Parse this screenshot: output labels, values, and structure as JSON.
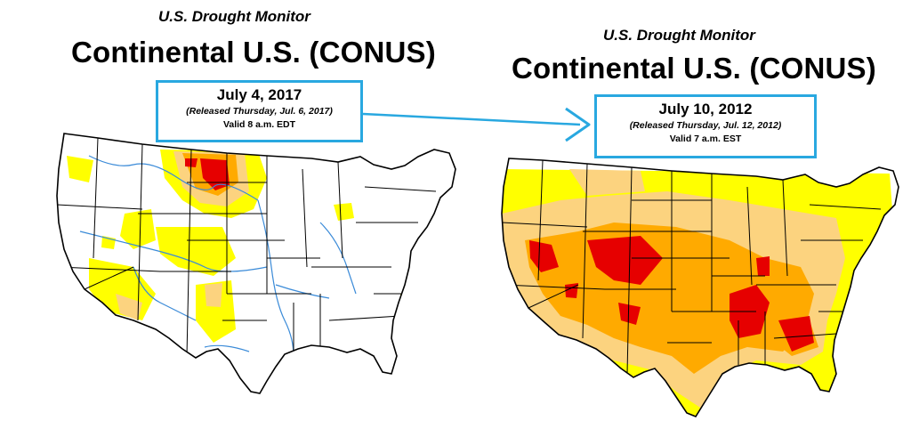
{
  "maps": [
    {
      "subtitle": "U.S. Drought Monitor",
      "title": "Continental U.S. (CONUS)",
      "date": "July 4, 2017",
      "released": "(Released Thursday, Jul. 6, 2017)",
      "valid": "Valid 8 a.m. EDT"
    },
    {
      "subtitle": "U.S. Drought Monitor",
      "title": "Continental U.S. (CONUS)",
      "date": "July 10, 2012",
      "released": "(Released Thursday, Jul. 12, 2012)",
      "valid": "Valid 7 a.m. EST"
    }
  ],
  "colors": {
    "background": "#ffffff",
    "box_border": "#29a8e0",
    "arrow": "#29a8e0",
    "abnormally_dry": "#ffff00",
    "moderate_drought": "#fcd37f",
    "severe_drought": "#ffaa00",
    "extreme_drought": "#e60000",
    "rivers": "#3b8bd8",
    "state_lines": "#000000"
  }
}
